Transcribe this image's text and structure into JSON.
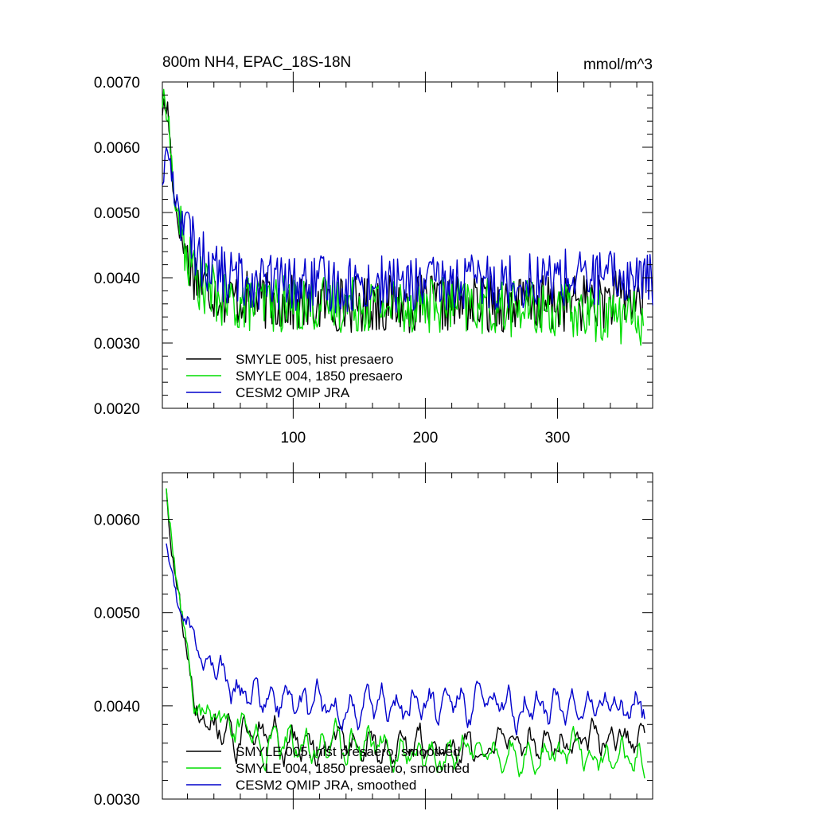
{
  "chart_data": [
    {
      "type": "line",
      "title": "800m NH4, EPAC_18S-18N",
      "units": "mmol/m^3",
      "xlabel": "",
      "ylabel": "",
      "xlim": [
        1,
        372
      ],
      "ylim": [
        0.002,
        0.007
      ],
      "xticks": [
        100,
        200,
        300
      ],
      "xtick_labels": [
        "100",
        "200",
        "300"
      ],
      "yticks": [
        0.002,
        0.003,
        0.004,
        0.005,
        0.006,
        0.007
      ],
      "ytick_labels": [
        "0.0020",
        "0.0030",
        "0.0040",
        "0.0050",
        "0.0060",
        "0.0070"
      ],
      "grid": false,
      "legend": "bottom-left",
      "noise": 0.00055,
      "series": [
        {
          "name": "SMYLE 005, hist presaero",
          "color": "#000000",
          "x_start": 1,
          "x_end": 365,
          "base": [
            [
              1,
              0.0066
            ],
            [
              5,
              0.0066
            ],
            [
              10,
              0.0052
            ],
            [
              15,
              0.0047
            ],
            [
              20,
              0.0043
            ],
            [
              30,
              0.0039
            ],
            [
              50,
              0.0037
            ],
            [
              100,
              0.0036
            ],
            [
              200,
              0.0036
            ],
            [
              230,
              0.0036
            ],
            [
              300,
              0.0036
            ],
            [
              365,
              0.0037
            ]
          ]
        },
        {
          "name": "SMYLE 004, 1850 presaero",
          "color": "#00dd00",
          "x_start": 1,
          "x_end": 365,
          "base": [
            [
              1,
              0.0067
            ],
            [
              5,
              0.0066
            ],
            [
              10,
              0.0052
            ],
            [
              15,
              0.0047
            ],
            [
              20,
              0.0043
            ],
            [
              30,
              0.0039
            ],
            [
              50,
              0.0036
            ],
            [
              100,
              0.0036
            ],
            [
              200,
              0.0036
            ],
            [
              300,
              0.0035
            ],
            [
              365,
              0.0034
            ]
          ]
        },
        {
          "name": "CESM2 OMIP JRA",
          "color": "#0000cc",
          "x_start": 1,
          "x_end": 372,
          "base": [
            [
              1,
              0.0055
            ],
            [
              5,
              0.006
            ],
            [
              10,
              0.0053
            ],
            [
              20,
              0.0047
            ],
            [
              30,
              0.0043
            ],
            [
              50,
              0.004
            ],
            [
              100,
              0.0039
            ],
            [
              200,
              0.0039
            ],
            [
              300,
              0.004
            ],
            [
              372,
              0.004
            ]
          ]
        }
      ]
    },
    {
      "type": "line",
      "title": "",
      "xlabel": "",
      "ylabel": "",
      "xlim": [
        1,
        372
      ],
      "ylim": [
        0.003,
        0.0065
      ],
      "xticks": [
        100,
        200,
        300
      ],
      "xtick_labels": [
        "",
        "",
        ""
      ],
      "yticks": [
        0.003,
        0.004,
        0.005,
        0.006
      ],
      "ytick_labels": [
        "0.0030",
        "0.0040",
        "0.0050",
        "0.0060"
      ],
      "grid": false,
      "legend": "bottom-left",
      "noise": 0.0002,
      "series": [
        {
          "name": "SMYLE 005, hist presaero, smoothed",
          "color": "#000000",
          "x_start": 4,
          "x_end": 366,
          "base": [
            [
              4,
              0.0063
            ],
            [
              10,
              0.0055
            ],
            [
              15,
              0.005
            ],
            [
              20,
              0.0047
            ],
            [
              25,
              0.0041
            ],
            [
              30,
              0.0039
            ],
            [
              40,
              0.0039
            ],
            [
              60,
              0.0037
            ],
            [
              100,
              0.0036
            ],
            [
              200,
              0.0036
            ],
            [
              240,
              0.0036
            ],
            [
              300,
              0.0036
            ],
            [
              366,
              0.00365
            ]
          ]
        },
        {
          "name": "SMYLE 004, 1850 presaero, smoothed",
          "color": "#00dd00",
          "x_start": 4,
          "x_end": 366,
          "base": [
            [
              4,
              0.0063
            ],
            [
              10,
              0.0055
            ],
            [
              15,
              0.005
            ],
            [
              20,
              0.0047
            ],
            [
              25,
              0.0041
            ],
            [
              30,
              0.0039
            ],
            [
              40,
              0.0039
            ],
            [
              60,
              0.0037
            ],
            [
              100,
              0.0036
            ],
            [
              200,
              0.0035
            ],
            [
              300,
              0.00345
            ],
            [
              366,
              0.0034
            ]
          ]
        },
        {
          "name": "CESM2 OMIP JRA, smoothed",
          "color": "#0000cc",
          "x_start": 4,
          "x_end": 366,
          "base": [
            [
              4,
              0.0057
            ],
            [
              10,
              0.0052
            ],
            [
              15,
              0.005
            ],
            [
              20,
              0.0049
            ],
            [
              25,
              0.0046
            ],
            [
              30,
              0.0044
            ],
            [
              40,
              0.0044
            ],
            [
              60,
              0.0041
            ],
            [
              100,
              0.004
            ],
            [
              200,
              0.004
            ],
            [
              300,
              0.004
            ],
            [
              366,
              0.004
            ]
          ]
        }
      ]
    }
  ]
}
